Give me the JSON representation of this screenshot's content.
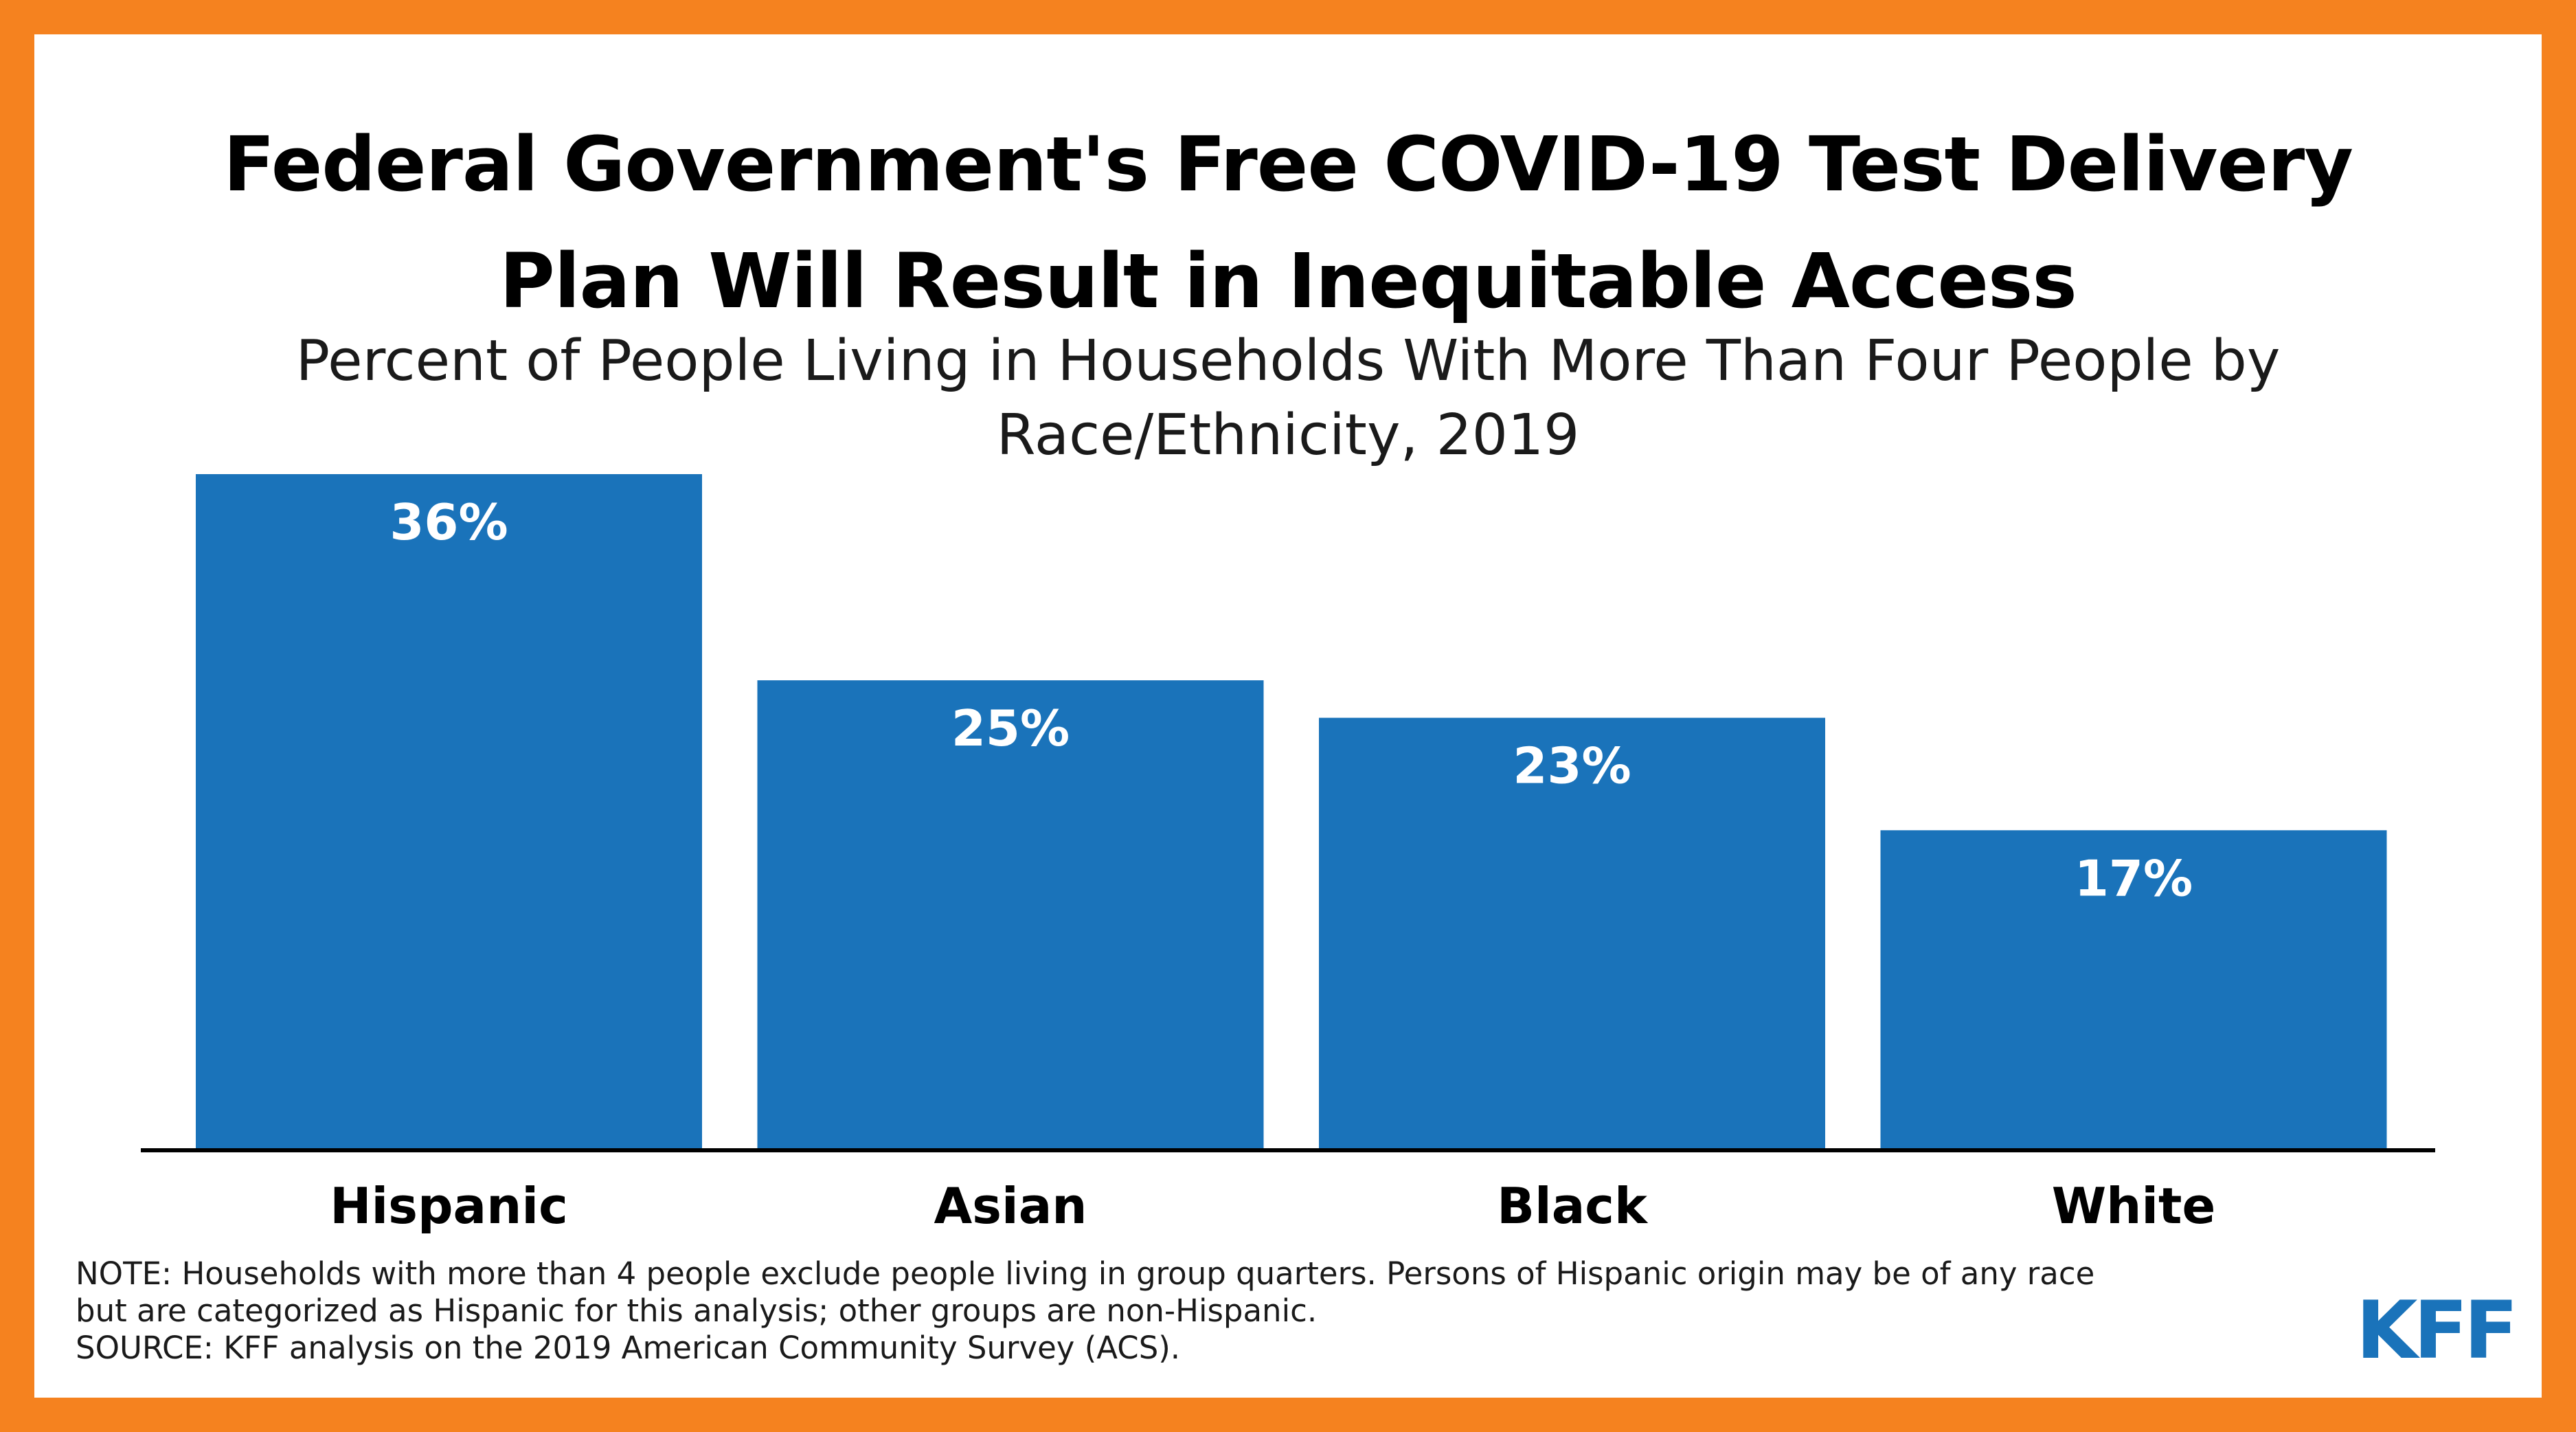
{
  "title_lines": [
    "Federal Government's Free COVID-19 Test Delivery",
    "Plan Will Result in Inequitable Access"
  ],
  "subtitle_lines": [
    "Percent of People Living in Households With More Than Four People by",
    "Race/Ethnicity, 2019"
  ],
  "notes": [
    "NOTE: Households with more than 4 people exclude people living in group quarters. Persons of Hispanic origin may be of any race",
    "but are categorized as Hispanic for this analysis; other groups are non-Hispanic.",
    "SOURCE: KFF analysis on the 2019 American Community Survey (ACS)."
  ],
  "logo": "KFF",
  "colors": {
    "border": "#f5821f",
    "bar": "#1a73ba",
    "axis": "#000000"
  },
  "chart_data": {
    "type": "bar",
    "title": "Percent of People Living in Households With More Than Four People by Race/Ethnicity, 2019",
    "categories": [
      "Hispanic",
      "Asian",
      "Black",
      "White"
    ],
    "values": [
      36,
      25,
      23,
      17
    ],
    "value_labels": [
      "36%",
      "25%",
      "23%",
      "17%"
    ],
    "xlabel": "",
    "ylabel": "",
    "ylim": [
      0,
      36
    ],
    "grid": false,
    "legend": "none"
  }
}
